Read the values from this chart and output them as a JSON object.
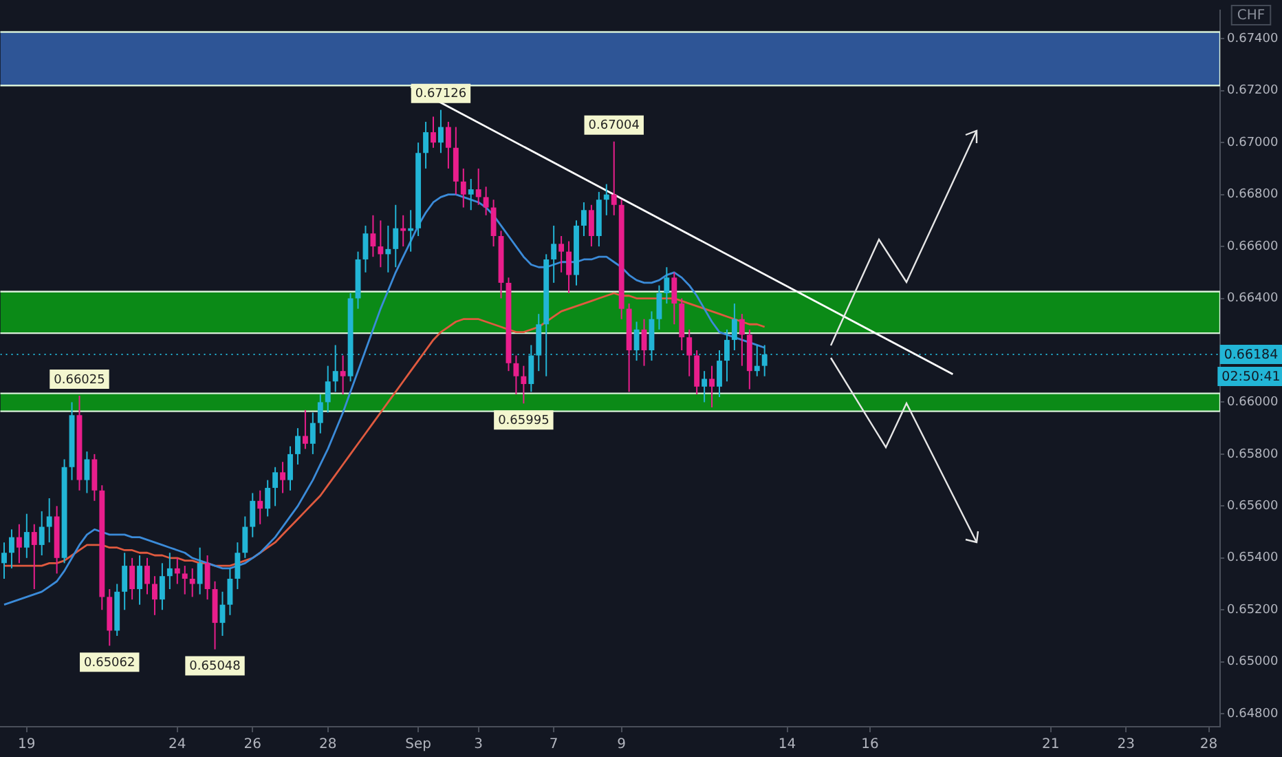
{
  "chart_data": {
    "type": "candlestick",
    "ylabel": "CHF",
    "categories": [
      null,
      null,
      null,
      "19",
      null,
      null,
      null,
      null,
      null,
      null,
      null,
      null,
      null,
      null,
      null,
      null,
      null,
      null,
      null,
      null,
      null,
      null,
      null,
      "24",
      null,
      null,
      null,
      null,
      null,
      null,
      null,
      null,
      null,
      "26",
      null,
      null,
      null,
      null,
      null,
      null,
      null,
      null,
      null,
      "28",
      null,
      null,
      null,
      null,
      null,
      null,
      null,
      null,
      null,
      null,
      null,
      "Sep",
      null,
      null,
      null,
      null,
      null,
      null,
      null,
      "3",
      null,
      null,
      null,
      null,
      null,
      null,
      null,
      null,
      null,
      "7",
      null,
      null,
      null,
      null,
      null,
      null,
      null,
      null,
      "9",
      null,
      null,
      null,
      null,
      null,
      null,
      null,
      null,
      null,
      null,
      null,
      null,
      null,
      null,
      null,
      null,
      null,
      null,
      null,
      null,
      null,
      "14",
      null,
      null,
      null,
      null,
      null,
      null,
      null,
      null,
      null,
      null,
      "16",
      null,
      null,
      null,
      null,
      null,
      null,
      null,
      null,
      null,
      null,
      null,
      null,
      null,
      null,
      null,
      null,
      null,
      null,
      null,
      null,
      null,
      null,
      null,
      "21",
      null,
      null,
      null,
      null,
      null,
      null,
      null,
      null,
      null,
      "23",
      null,
      null,
      null,
      null,
      null,
      null,
      null,
      null,
      null,
      null,
      "28",
      null
    ],
    "ylim": [
      0.6475,
      0.6751
    ],
    "yticks": [
      {
        "value": 0.648,
        "label": "0.64800"
      },
      {
        "value": 0.65,
        "label": "0.65000"
      },
      {
        "value": 0.652,
        "label": "0.65200"
      },
      {
        "value": 0.654,
        "label": "0.65400"
      },
      {
        "value": 0.656,
        "label": "0.65600"
      },
      {
        "value": 0.658,
        "label": "0.65800"
      },
      {
        "value": 0.66,
        "label": "0.66000"
      },
      {
        "value": 0.662,
        "label": null
      },
      {
        "value": 0.664,
        "label": "0.66400"
      },
      {
        "value": 0.666,
        "label": "0.66600"
      },
      {
        "value": 0.668,
        "label": "0.66800"
      },
      {
        "value": 0.67,
        "label": "0.67000"
      },
      {
        "value": 0.672,
        "label": "0.67200"
      },
      {
        "value": 0.674,
        "label": "0.67400"
      }
    ],
    "ohlc": [
      [
        0.6538,
        0.6546,
        0.6532,
        0.6542
      ],
      [
        0.6542,
        0.6551,
        0.6536,
        0.6548
      ],
      [
        0.6548,
        0.6553,
        0.6538,
        0.6544
      ],
      [
        0.6544,
        0.6557,
        0.654,
        0.655
      ],
      [
        0.655,
        0.6553,
        0.6528,
        0.6545
      ],
      [
        0.6545,
        0.6558,
        0.6541,
        0.6552
      ],
      [
        0.6552,
        0.6563,
        0.6546,
        0.6556
      ],
      [
        0.6556,
        0.656,
        0.6534,
        0.654
      ],
      [
        0.654,
        0.6578,
        0.6538,
        0.6575
      ],
      [
        0.6575,
        0.66,
        0.657,
        0.6595
      ],
      [
        0.6595,
        0.66025,
        0.6566,
        0.657
      ],
      [
        0.657,
        0.6581,
        0.6565,
        0.6578
      ],
      [
        0.6578,
        0.658,
        0.6562,
        0.6566
      ],
      [
        0.6566,
        0.6568,
        0.652,
        0.6525
      ],
      [
        0.6525,
        0.6528,
        0.65062,
        0.6512
      ],
      [
        0.6512,
        0.653,
        0.651,
        0.6527
      ],
      [
        0.6527,
        0.6542,
        0.652,
        0.6537
      ],
      [
        0.6537,
        0.654,
        0.6524,
        0.6528
      ],
      [
        0.6528,
        0.6541,
        0.6522,
        0.6537
      ],
      [
        0.6537,
        0.654,
        0.6526,
        0.653
      ],
      [
        0.653,
        0.6533,
        0.6518,
        0.6524
      ],
      [
        0.6524,
        0.6538,
        0.652,
        0.6533
      ],
      [
        0.6533,
        0.6542,
        0.6528,
        0.6536
      ],
      [
        0.6536,
        0.654,
        0.653,
        0.6534
      ],
      [
        0.6534,
        0.6537,
        0.6526,
        0.6532
      ],
      [
        0.6532,
        0.6536,
        0.6525,
        0.653
      ],
      [
        0.653,
        0.6544,
        0.6526,
        0.6538
      ],
      [
        0.6538,
        0.6541,
        0.6524,
        0.6528
      ],
      [
        0.6528,
        0.6531,
        0.65048,
        0.6515
      ],
      [
        0.6515,
        0.6527,
        0.651,
        0.6522
      ],
      [
        0.6522,
        0.6536,
        0.6518,
        0.6532
      ],
      [
        0.6532,
        0.6546,
        0.6528,
        0.6542
      ],
      [
        0.6542,
        0.6556,
        0.654,
        0.6552
      ],
      [
        0.6552,
        0.6565,
        0.6548,
        0.6562
      ],
      [
        0.6562,
        0.6566,
        0.6553,
        0.6559
      ],
      [
        0.6559,
        0.657,
        0.6556,
        0.6567
      ],
      [
        0.6567,
        0.6575,
        0.656,
        0.6573
      ],
      [
        0.6573,
        0.6577,
        0.6565,
        0.657
      ],
      [
        0.657,
        0.6583,
        0.6566,
        0.658
      ],
      [
        0.658,
        0.659,
        0.6576,
        0.6587
      ],
      [
        0.6587,
        0.6597,
        0.6582,
        0.6584
      ],
      [
        0.6584,
        0.6596,
        0.658,
        0.6592
      ],
      [
        0.6592,
        0.6603,
        0.6588,
        0.66
      ],
      [
        0.66,
        0.6614,
        0.6596,
        0.6608
      ],
      [
        0.6608,
        0.6622,
        0.6604,
        0.6612
      ],
      [
        0.6612,
        0.6618,
        0.6603,
        0.661
      ],
      [
        0.661,
        0.6642,
        0.6608,
        0.664
      ],
      [
        0.664,
        0.6658,
        0.6636,
        0.6655
      ],
      [
        0.6655,
        0.6668,
        0.665,
        0.6665
      ],
      [
        0.6665,
        0.6672,
        0.6656,
        0.666
      ],
      [
        0.666,
        0.667,
        0.6652,
        0.6657
      ],
      [
        0.6657,
        0.6668,
        0.665,
        0.6659
      ],
      [
        0.6659,
        0.6676,
        0.6652,
        0.6667
      ],
      [
        0.6667,
        0.6672,
        0.666,
        0.6666
      ],
      [
        0.6666,
        0.6674,
        0.6658,
        0.6667
      ],
      [
        0.6667,
        0.67,
        0.6664,
        0.6696
      ],
      [
        0.6696,
        0.6708,
        0.669,
        0.6704
      ],
      [
        0.6704,
        0.671,
        0.6698,
        0.67
      ],
      [
        0.67,
        0.67126,
        0.6696,
        0.6706
      ],
      [
        0.6706,
        0.6708,
        0.669,
        0.6698
      ],
      [
        0.6698,
        0.6706,
        0.668,
        0.6685
      ],
      [
        0.6685,
        0.669,
        0.6675,
        0.668
      ],
      [
        0.668,
        0.6686,
        0.6674,
        0.6682
      ],
      [
        0.6682,
        0.669,
        0.6676,
        0.6679
      ],
      [
        0.6679,
        0.6683,
        0.6672,
        0.6675
      ],
      [
        0.6675,
        0.6678,
        0.666,
        0.6664
      ],
      [
        0.6664,
        0.6666,
        0.664,
        0.6646
      ],
      [
        0.6646,
        0.6648,
        0.6612,
        0.6615
      ],
      [
        0.6615,
        0.6618,
        0.6603,
        0.661
      ],
      [
        0.661,
        0.6614,
        0.65995,
        0.6607
      ],
      [
        0.6607,
        0.6622,
        0.6604,
        0.6618
      ],
      [
        0.6618,
        0.6634,
        0.6612,
        0.663
      ],
      [
        0.663,
        0.6657,
        0.661,
        0.6655
      ],
      [
        0.6655,
        0.6668,
        0.6646,
        0.6661
      ],
      [
        0.6661,
        0.6664,
        0.665,
        0.6658
      ],
      [
        0.6658,
        0.6662,
        0.6642,
        0.6649
      ],
      [
        0.6649,
        0.667,
        0.6645,
        0.6668
      ],
      [
        0.6668,
        0.6677,
        0.6664,
        0.6674
      ],
      [
        0.6674,
        0.6676,
        0.666,
        0.6664
      ],
      [
        0.6664,
        0.6681,
        0.666,
        0.6678
      ],
      [
        0.6678,
        0.6684,
        0.6672,
        0.668
      ],
      [
        0.668,
        0.67004,
        0.6672,
        0.6676
      ],
      [
        0.6676,
        0.6678,
        0.6632,
        0.6636
      ],
      [
        0.6636,
        0.6638,
        0.6604,
        0.662
      ],
      [
        0.662,
        0.6631,
        0.6616,
        0.6628
      ],
      [
        0.6628,
        0.6632,
        0.6614,
        0.662
      ],
      [
        0.662,
        0.6635,
        0.6616,
        0.6632
      ],
      [
        0.6632,
        0.6645,
        0.6628,
        0.6642
      ],
      [
        0.6642,
        0.6652,
        0.6638,
        0.6648
      ],
      [
        0.6648,
        0.665,
        0.663,
        0.6638
      ],
      [
        0.6638,
        0.664,
        0.662,
        0.6625
      ],
      [
        0.6625,
        0.6628,
        0.661,
        0.6618
      ],
      [
        0.6618,
        0.662,
        0.6603,
        0.6606
      ],
      [
        0.6606,
        0.6612,
        0.66,
        0.6609
      ],
      [
        0.6609,
        0.6614,
        0.6598,
        0.6606
      ],
      [
        0.6606,
        0.662,
        0.6602,
        0.6616
      ],
      [
        0.6616,
        0.6628,
        0.6608,
        0.6624
      ],
      [
        0.6624,
        0.6638,
        0.662,
        0.6632
      ],
      [
        0.6632,
        0.6634,
        0.6614,
        0.6626
      ],
      [
        0.6626,
        0.6628,
        0.6605,
        0.6612
      ],
      [
        0.6612,
        0.6622,
        0.661,
        0.6614
      ],
      [
        0.6614,
        0.6622,
        0.661,
        0.66184
      ],
      null,
      null,
      null,
      null,
      null,
      null,
      null,
      null,
      null,
      null,
      null,
      null,
      null,
      null,
      null,
      null,
      null,
      null,
      null,
      null,
      null,
      null,
      null,
      null,
      null,
      null,
      null,
      null,
      null,
      null,
      null,
      null,
      null,
      null,
      null,
      null,
      null,
      null,
      null,
      null,
      null,
      null,
      null,
      null,
      null,
      null,
      null,
      null,
      null,
      null,
      null,
      null,
      null,
      null,
      null,
      null,
      null,
      null,
      null,
      null
    ],
    "colors": [
      "#22b5d6",
      "#22b5d6",
      "#e91e8c",
      "#22b5d6",
      "#e91e8c",
      "#22b5d6",
      "#22b5d6",
      "#e91e8c",
      "#22b5d6",
      "#22b5d6",
      "#e91e8c",
      "#22b5d6",
      "#e91e8c",
      "#e91e8c",
      "#e91e8c",
      "#22b5d6",
      "#22b5d6",
      "#e91e8c",
      "#22b5d6",
      "#e91e8c",
      "#e91e8c",
      "#22b5d6",
      "#22b5d6",
      "#e91e8c",
      "#e91e8c",
      "#e91e8c",
      "#22b5d6",
      "#e91e8c",
      "#e91e8c",
      "#22b5d6",
      "#22b5d6",
      "#22b5d6",
      "#22b5d6",
      "#22b5d6",
      "#e91e8c",
      "#22b5d6",
      "#22b5d6",
      "#e91e8c",
      "#22b5d6",
      "#22b5d6",
      "#e91e8c",
      "#22b5d6",
      "#22b5d6",
      "#22b5d6",
      "#22b5d6",
      "#e91e8c",
      "#22b5d6",
      "#22b5d6",
      "#22b5d6",
      "#e91e8c",
      "#e91e8c",
      "#22b5d6",
      "#22b5d6",
      "#e91e8c",
      "#22b5d6",
      "#22b5d6",
      "#22b5d6",
      "#e91e8c",
      "#22b5d6",
      "#e91e8c",
      "#e91e8c",
      "#e91e8c",
      "#22b5d6",
      "#e91e8c",
      "#e91e8c",
      "#e91e8c",
      "#e91e8c",
      "#e91e8c",
      "#e91e8c",
      "#e91e8c",
      "#22b5d6",
      "#22b5d6",
      "#22b5d6",
      "#22b5d6",
      "#e91e8c",
      "#e91e8c",
      "#22b5d6",
      "#22b5d6",
      "#e91e8c",
      "#22b5d6",
      "#22b5d6",
      "#e91e8c",
      "#e91e8c",
      "#e91e8c",
      "#22b5d6",
      "#e91e8c",
      "#22b5d6",
      "#22b5d6",
      "#22b5d6",
      "#e91e8c",
      "#e91e8c",
      "#e91e8c",
      "#e91e8c",
      "#22b5d6",
      "#e91e8c",
      "#22b5d6",
      "#22b5d6",
      "#22b5d6",
      "#e91e8c",
      "#e91e8c",
      "#22b5d6",
      "#22b5d6",
      null,
      null,
      null,
      null,
      null,
      null,
      null,
      null,
      null,
      null,
      null,
      null,
      null,
      null,
      null,
      null,
      null,
      null,
      null,
      null,
      null,
      null,
      null,
      null,
      null,
      null,
      null,
      null,
      null,
      null,
      null,
      null,
      null,
      null,
      null,
      null,
      null,
      null,
      null,
      null,
      null,
      null,
      null,
      null,
      null,
      null,
      null,
      null,
      null,
      null,
      null,
      null,
      null,
      null,
      null,
      null,
      null,
      null,
      null,
      null
    ],
    "series": [
      {
        "type": "line",
        "color": "#3b8bd9",
        "values": [
          0.6522,
          0.6523,
          0.6524,
          0.6525,
          0.6526,
          0.6527,
          0.6529,
          0.6531,
          0.6535,
          0.654,
          0.6545,
          0.6549,
          0.6551,
          0.655,
          0.6549,
          0.6549,
          0.6549,
          0.6548,
          0.6548,
          0.6547,
          0.6546,
          0.6545,
          0.6544,
          0.6543,
          0.6542,
          0.654,
          0.6539,
          0.6538,
          0.6537,
          0.6536,
          0.6536,
          0.6537,
          0.6538,
          0.654,
          0.6542,
          0.6545,
          0.6548,
          0.6552,
          0.6556,
          0.656,
          0.6565,
          0.657,
          0.6576,
          0.6582,
          0.6589,
          0.6596,
          0.6604,
          0.6612,
          0.662,
          0.6628,
          0.6636,
          0.6643,
          0.665,
          0.6656,
          0.6662,
          0.6668,
          0.6673,
          0.6677,
          0.6679,
          0.668,
          0.668,
          0.6679,
          0.6678,
          0.6677,
          0.6675,
          0.6672,
          0.6668,
          0.6664,
          0.666,
          0.6656,
          0.6653,
          0.6652,
          0.6652,
          0.6653,
          0.6654,
          0.6654,
          0.6654,
          0.6655,
          0.6655,
          0.6656,
          0.6656,
          0.6654,
          0.6652,
          0.6649,
          0.6647,
          0.6646,
          0.6646,
          0.6647,
          0.6649,
          0.665,
          0.6648,
          0.6645,
          0.6641,
          0.6636,
          0.6631,
          0.6627,
          0.6626,
          0.6625,
          0.6624,
          0.6623,
          0.6622,
          0.6621,
          null,
          null,
          null,
          null,
          null,
          null,
          null,
          null,
          null,
          null,
          null,
          null,
          null,
          null,
          null,
          null,
          null,
          null,
          null,
          null,
          null,
          null,
          null,
          null,
          null,
          null,
          null,
          null,
          null,
          null,
          null,
          null,
          null,
          null,
          null,
          null,
          null,
          null,
          null,
          null,
          null,
          null,
          null,
          null,
          null,
          null,
          null,
          null,
          null,
          null,
          null,
          null,
          null,
          null,
          null,
          null,
          null,
          null,
          null,
          null
        ]
      },
      {
        "type": "line",
        "color": "#e05a3f",
        "values": [
          0.6537,
          0.6537,
          0.6537,
          0.6537,
          0.6537,
          0.6537,
          0.6538,
          0.6538,
          0.6539,
          0.6541,
          0.6543,
          0.6545,
          0.6545,
          0.6545,
          0.6544,
          0.6544,
          0.6543,
          0.6543,
          0.6542,
          0.6542,
          0.6541,
          0.6541,
          0.654,
          0.654,
          0.6539,
          0.6539,
          0.6538,
          0.6538,
          0.6537,
          0.6537,
          0.6537,
          0.6538,
          0.6539,
          0.654,
          0.6542,
          0.6544,
          0.6546,
          0.6549,
          0.6552,
          0.6555,
          0.6558,
          0.6561,
          0.6564,
          0.6568,
          0.6572,
          0.6576,
          0.658,
          0.6584,
          0.6588,
          0.6592,
          0.6596,
          0.66,
          0.6604,
          0.6608,
          0.6612,
          0.6616,
          0.662,
          0.6624,
          0.6627,
          0.6629,
          0.6631,
          0.6632,
          0.6632,
          0.6632,
          0.6631,
          0.663,
          0.6629,
          0.6628,
          0.6627,
          0.6627,
          0.6628,
          0.6629,
          0.6631,
          0.6633,
          0.6635,
          0.6636,
          0.6637,
          0.6638,
          0.6639,
          0.664,
          0.6641,
          0.6642,
          0.6641,
          0.6641,
          0.664,
          0.664,
          0.664,
          0.664,
          0.664,
          0.664,
          0.6639,
          0.6638,
          0.6637,
          0.6636,
          0.6635,
          0.6634,
          0.6633,
          0.6632,
          0.6631,
          0.663,
          0.663,
          0.6629,
          null,
          null,
          null,
          null,
          null,
          null,
          null,
          null,
          null,
          null,
          null,
          null,
          null,
          null,
          null,
          null,
          null,
          null,
          null,
          null,
          null,
          null,
          null,
          null,
          null,
          null,
          null,
          null,
          null,
          null,
          null,
          null,
          null,
          null,
          null,
          null,
          null,
          null,
          null,
          null,
          null,
          null,
          null,
          null,
          null,
          null,
          null,
          null,
          null,
          null,
          null,
          null,
          null,
          null,
          null,
          null,
          null,
          null,
          null,
          null
        ]
      },
      {
        "type": "line",
        "color": "#ffffff",
        "values": [
          null,
          null,
          null,
          null,
          null,
          null,
          null,
          null,
          null,
          null,
          null,
          null,
          null,
          null,
          null,
          null,
          null,
          null,
          null,
          null,
          null,
          null,
          null,
          null,
          null,
          null,
          null,
          null,
          null,
          null,
          null,
          null,
          null,
          null,
          null,
          null,
          null,
          null,
          null,
          null,
          null,
          null,
          null,
          null,
          null,
          null,
          null,
          null,
          null,
          null,
          null,
          null,
          null,
          null,
          0.67215,
          null,
          null,
          null,
          null,
          null,
          null,
          null,
          null,
          null,
          null,
          null,
          null,
          null,
          null,
          null,
          null,
          null,
          null,
          null,
          null,
          null,
          null,
          null,
          null,
          null,
          null,
          null,
          null,
          null,
          null,
          null,
          null,
          null,
          null,
          null,
          null,
          null,
          null,
          null,
          null,
          null,
          null,
          null,
          null,
          null,
          null,
          null,
          null,
          null,
          null,
          null,
          null,
          null,
          null,
          null,
          null,
          null,
          null,
          null,
          null,
          null,
          null,
          null,
          null,
          null,
          null,
          null,
          null,
          null,
          null,
          null,
          0.66108,
          null,
          null,
          null,
          null,
          null,
          null,
          null,
          null,
          null,
          null,
          null,
          null,
          null,
          null,
          null,
          null,
          null,
          null,
          null,
          null,
          null,
          null,
          null,
          null,
          null,
          null,
          null,
          null,
          null,
          null,
          null,
          null,
          null,
          null,
          null
        ]
      }
    ],
    "bands": [
      {
        "axis": "y",
        "from": 0.6722,
        "to": 0.67426,
        "color": "#2e5596"
      },
      {
        "axis": "y",
        "from": 0.66266,
        "to": 0.66426,
        "color": "#0b8a17"
      },
      {
        "axis": "y",
        "from": 0.65965,
        "to": 0.66034,
        "color": "#0b8a17"
      }
    ],
    "ref_lines": [
      {
        "axis": "y",
        "value": 0.66184,
        "label": "0.66184",
        "color": "#22b5d6",
        "line_style": "dotted"
      }
    ],
    "annotations": [
      {
        "text": "0.66025",
        "y": 0.66025
      },
      {
        "text": "0.65062",
        "y": 0.65062
      },
      {
        "text": "0.65048",
        "y": 0.65048
      },
      {
        "text": "0.67126",
        "y": 0.67126
      },
      {
        "text": "0.67004",
        "y": 0.67004
      },
      {
        "text": "0.65995",
        "y": 0.65995
      },
      "02:50:41"
    ]
  }
}
